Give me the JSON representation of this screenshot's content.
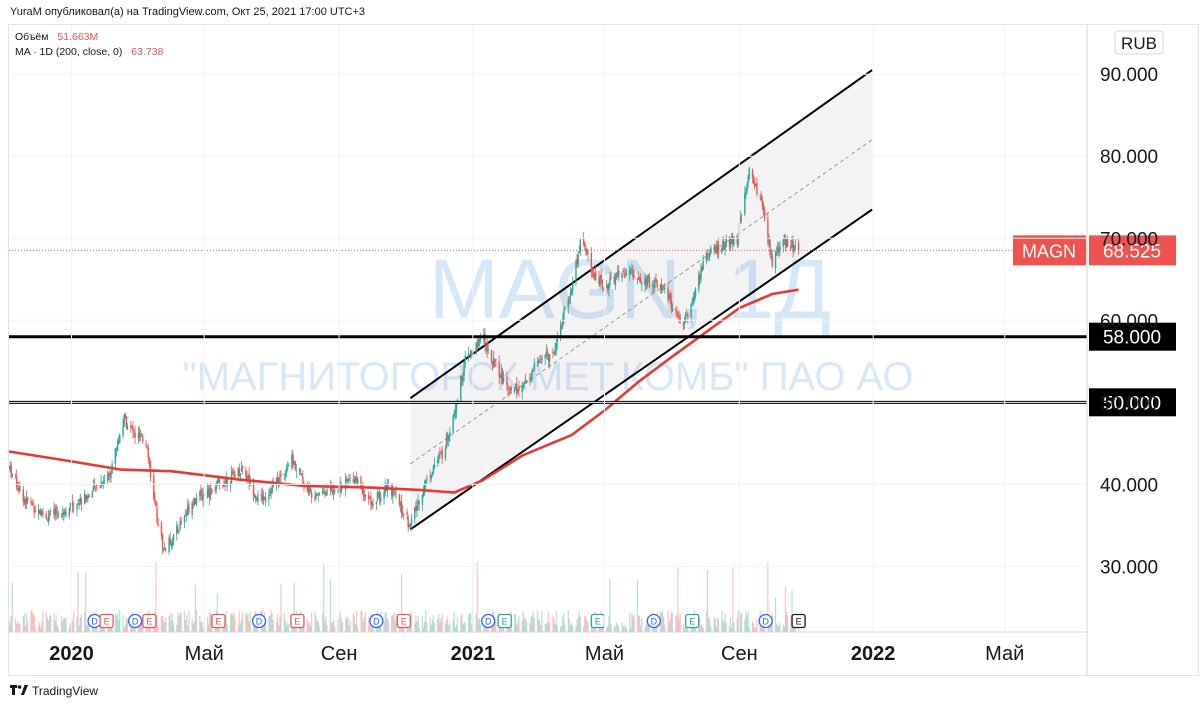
{
  "header": {
    "published": "YuraM опубликовал(а) на TradingView.com, Окт 25, 2021 17:00 UTC+3"
  },
  "legend": {
    "volume_label": "Объём",
    "volume_value": "51.663M",
    "ma_label": "MA · 1D (200, close, 0)",
    "ma_value": "63.738"
  },
  "currency": "RUB",
  "watermark": {
    "ticker": "MAGN, 1Д",
    "name": "\"МАГНИТОГОРСК.МЕТ.КОМБ\" ПАО АО"
  },
  "footer": {
    "brand": "TradingView"
  },
  "colors": {
    "up": "#26a69a",
    "down": "#ef5350",
    "ma": "#e53935",
    "price_badge": "#ef5350",
    "level_line": "#000000",
    "watermark": "#b5d4f4",
    "axis_text": "#131722"
  },
  "chart_data": {
    "type": "candlestick",
    "symbol": "MAGN",
    "timeframe": "1D",
    "last_price": 68.525,
    "last_price_label": "68.525",
    "ylim": [
      22,
      96
    ],
    "y_ticks": [
      {
        "value": 30,
        "label": "30.000"
      },
      {
        "value": 40,
        "label": "40.000"
      },
      {
        "value": 50,
        "label": "50.000"
      },
      {
        "value": 60,
        "label": "60.000"
      },
      {
        "value": 70,
        "label": "70.000"
      },
      {
        "value": 80,
        "label": "80.000"
      },
      {
        "value": 90,
        "label": "90.000"
      }
    ],
    "x_range": [
      "2019-11-05",
      "2022-07-15"
    ],
    "x_ticks": [
      {
        "date": "2020-01-01",
        "label": "2020",
        "bold": true
      },
      {
        "date": "2020-05-01",
        "label": "Май",
        "bold": false
      },
      {
        "date": "2020-09-01",
        "label": "Сен",
        "bold": false
      },
      {
        "date": "2021-01-01",
        "label": "2021",
        "bold": true
      },
      {
        "date": "2021-05-01",
        "label": "Май",
        "bold": false
      },
      {
        "date": "2021-09-01",
        "label": "Сен",
        "bold": false
      },
      {
        "date": "2022-01-01",
        "label": "2022",
        "bold": true
      },
      {
        "date": "2022-05-01",
        "label": "Май",
        "bold": false
      }
    ],
    "price_path": [
      [
        "2019-11-05",
        42.0
      ],
      [
        "2019-11-20",
        38.0
      ],
      [
        "2019-12-10",
        36.0
      ],
      [
        "2019-12-28",
        37.0
      ],
      [
        "2020-01-20",
        39.0
      ],
      [
        "2020-02-05",
        41.5
      ],
      [
        "2020-02-18",
        48.0
      ],
      [
        "2020-02-28",
        46.0
      ],
      [
        "2020-03-10",
        45.0
      ],
      [
        "2020-03-16",
        38.0
      ],
      [
        "2020-03-25",
        32.0
      ],
      [
        "2020-04-05",
        34.0
      ],
      [
        "2020-04-20",
        38.0
      ],
      [
        "2020-05-15",
        40.0
      ],
      [
        "2020-06-05",
        42.0
      ],
      [
        "2020-06-20",
        38.0
      ],
      [
        "2020-07-05",
        40.0
      ],
      [
        "2020-07-20",
        43.0
      ],
      [
        "2020-08-05",
        39.0
      ],
      [
        "2020-09-01",
        39.5
      ],
      [
        "2020-09-15",
        41.0
      ],
      [
        "2020-10-01",
        37.5
      ],
      [
        "2020-10-15",
        40.0
      ],
      [
        "2020-10-25",
        38.0
      ],
      [
        "2020-11-05",
        35.0
      ],
      [
        "2020-11-15",
        39.0
      ],
      [
        "2020-11-25",
        42.0
      ],
      [
        "2020-12-05",
        44.0
      ],
      [
        "2020-12-15",
        49.0
      ],
      [
        "2020-12-25",
        55.0
      ],
      [
        "2021-01-10",
        58.0
      ],
      [
        "2021-01-20",
        55.0
      ],
      [
        "2021-02-01",
        52.0
      ],
      [
        "2021-02-15",
        51.5
      ],
      [
        "2021-03-01",
        55.0
      ],
      [
        "2021-03-15",
        56.0
      ],
      [
        "2021-04-01",
        64.0
      ],
      [
        "2021-04-10",
        70.0
      ],
      [
        "2021-04-20",
        66.0
      ],
      [
        "2021-05-01",
        64.0
      ],
      [
        "2021-05-20",
        66.0
      ],
      [
        "2021-06-05",
        65.0
      ],
      [
        "2021-06-25",
        64.0
      ],
      [
        "2021-07-10",
        59.0
      ],
      [
        "2021-07-20",
        62.0
      ],
      [
        "2021-08-01",
        68.0
      ],
      [
        "2021-08-15",
        69.0
      ],
      [
        "2021-08-30",
        70.0
      ],
      [
        "2021-09-10",
        78.0
      ],
      [
        "2021-09-20",
        75.0
      ],
      [
        "2021-10-01",
        67.0
      ],
      [
        "2021-10-10",
        70.0
      ],
      [
        "2021-10-25",
        68.5
      ]
    ],
    "ma_200": [
      [
        "2019-11-05",
        44.0
      ],
      [
        "2020-01-01",
        42.8
      ],
      [
        "2020-02-15",
        41.8
      ],
      [
        "2020-04-01",
        41.6
      ],
      [
        "2020-06-01",
        40.6
      ],
      [
        "2020-08-01",
        39.8
      ],
      [
        "2020-10-01",
        39.6
      ],
      [
        "2020-11-15",
        39.3
      ],
      [
        "2020-12-15",
        39.0
      ],
      [
        "2021-01-10",
        40.5
      ],
      [
        "2021-02-15",
        43.5
      ],
      [
        "2021-04-01",
        46.0
      ],
      [
        "2021-05-01",
        49.0
      ],
      [
        "2021-06-01",
        52.5
      ],
      [
        "2021-07-01",
        55.5
      ],
      [
        "2021-08-01",
        58.5
      ],
      [
        "2021-09-01",
        61.5
      ],
      [
        "2021-10-01",
        63.2
      ],
      [
        "2021-10-25",
        63.738
      ]
    ],
    "channel": {
      "start": "2020-11-05",
      "end": "2021-12-31",
      "upper": [
        50.5,
        90.5
      ],
      "middle": [
        42.5,
        82.0
      ],
      "lower": [
        34.5,
        73.5
      ]
    },
    "levels": [
      {
        "value": 58,
        "label": "58.000"
      },
      {
        "value": 50,
        "label": "50.000"
      }
    ],
    "events": [
      {
        "date": "2020-01-22",
        "type": "D"
      },
      {
        "date": "2020-02-02",
        "type": "E"
      },
      {
        "date": "2020-02-28",
        "type": "D"
      },
      {
        "date": "2020-03-12",
        "type": "E"
      },
      {
        "date": "2020-05-14",
        "type": "E"
      },
      {
        "date": "2020-06-20",
        "type": "D"
      },
      {
        "date": "2020-07-25",
        "type": "E"
      },
      {
        "date": "2020-10-05",
        "type": "D"
      },
      {
        "date": "2020-10-30",
        "type": "E"
      },
      {
        "date": "2021-01-15",
        "type": "D"
      },
      {
        "date": "2021-01-30",
        "type": "E"
      },
      {
        "date": "2021-04-25",
        "type": "E"
      },
      {
        "date": "2021-06-15",
        "type": "D"
      },
      {
        "date": "2021-07-20",
        "type": "E"
      },
      {
        "date": "2021-09-25",
        "type": "D"
      },
      {
        "date": "2021-10-25",
        "type": "E"
      }
    ]
  }
}
